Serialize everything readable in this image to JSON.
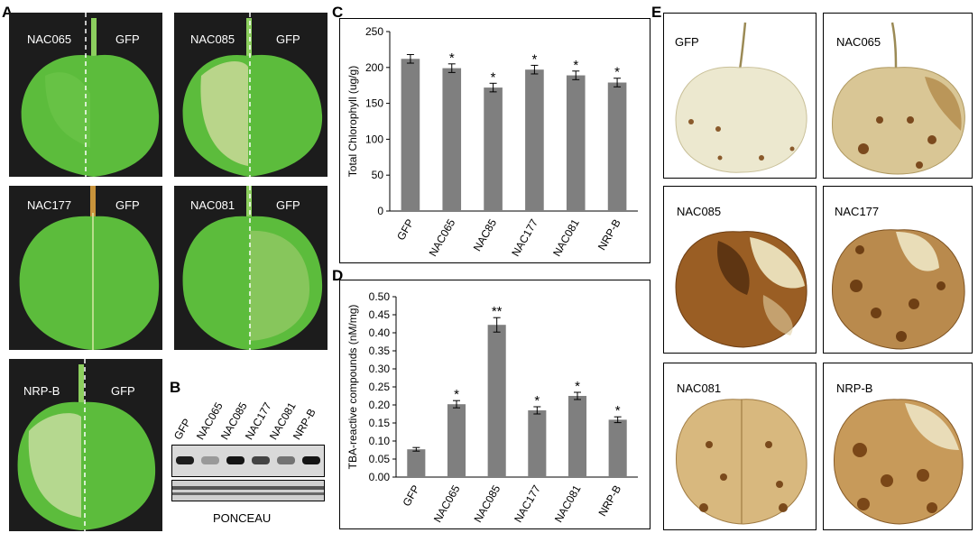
{
  "panels": {
    "a": "A",
    "b": "B",
    "c": "C",
    "d": "D",
    "e": "E"
  },
  "panel_a": {
    "leaves": [
      {
        "left": "NAC065",
        "right": "GFP"
      },
      {
        "left": "NAC085",
        "right": "GFP"
      },
      {
        "left": "NAC177",
        "right": "GFP"
      },
      {
        "left": "NAC081",
        "right": "GFP"
      },
      {
        "left": "NRP-B",
        "right": "GFP"
      }
    ]
  },
  "panel_b": {
    "lanes": [
      "GFP",
      "NAC065",
      "NAC085",
      "NAC177",
      "NAC081",
      "NRP-B"
    ],
    "band_intensity": [
      0.9,
      0.25,
      0.95,
      0.7,
      0.45,
      0.95
    ],
    "loading_label": "PONCEAU"
  },
  "panel_e": {
    "leaves": [
      "GFP",
      "NAC065",
      "NAC085",
      "NAC177",
      "NAC081",
      "NRP-B"
    ]
  },
  "chart_data": [
    {
      "type": "bar",
      "panel": "C",
      "categories": [
        "GFP",
        "NAC065",
        "NAC85",
        "NAC177",
        "NAC081",
        "NRP-B"
      ],
      "values": [
        212,
        199,
        172,
        197,
        189,
        179
      ],
      "errors": [
        6,
        6,
        6,
        6,
        6,
        6
      ],
      "significance": [
        "",
        "*",
        "*",
        "*",
        "*",
        "*"
      ],
      "ylabel": "Total Chlorophyll (ug/g)",
      "ylim": [
        0,
        250
      ],
      "yticks": [
        0,
        50,
        100,
        150,
        200,
        250
      ],
      "bar_color": "#7f7f7f"
    },
    {
      "type": "bar",
      "panel": "D",
      "categories": [
        "GFP",
        "NAC065",
        "NAC085",
        "NAC177",
        "NAC081",
        "NRP-B"
      ],
      "values": [
        0.077,
        0.202,
        0.422,
        0.185,
        0.225,
        0.159
      ],
      "errors": [
        0.005,
        0.01,
        0.02,
        0.01,
        0.01,
        0.008
      ],
      "significance": [
        "",
        "*",
        "**",
        "*",
        "*",
        "*"
      ],
      "ylabel": "TBA-reactive compounds (nM/mg)",
      "ylim": [
        0,
        0.5
      ],
      "yticks": [
        "0.00",
        "0.05",
        "0.10",
        "0.15",
        "0.20",
        "0.25",
        "0.30",
        "0.35",
        "0.40",
        "0.45",
        "0.50"
      ],
      "bar_color": "#7f7f7f"
    }
  ]
}
